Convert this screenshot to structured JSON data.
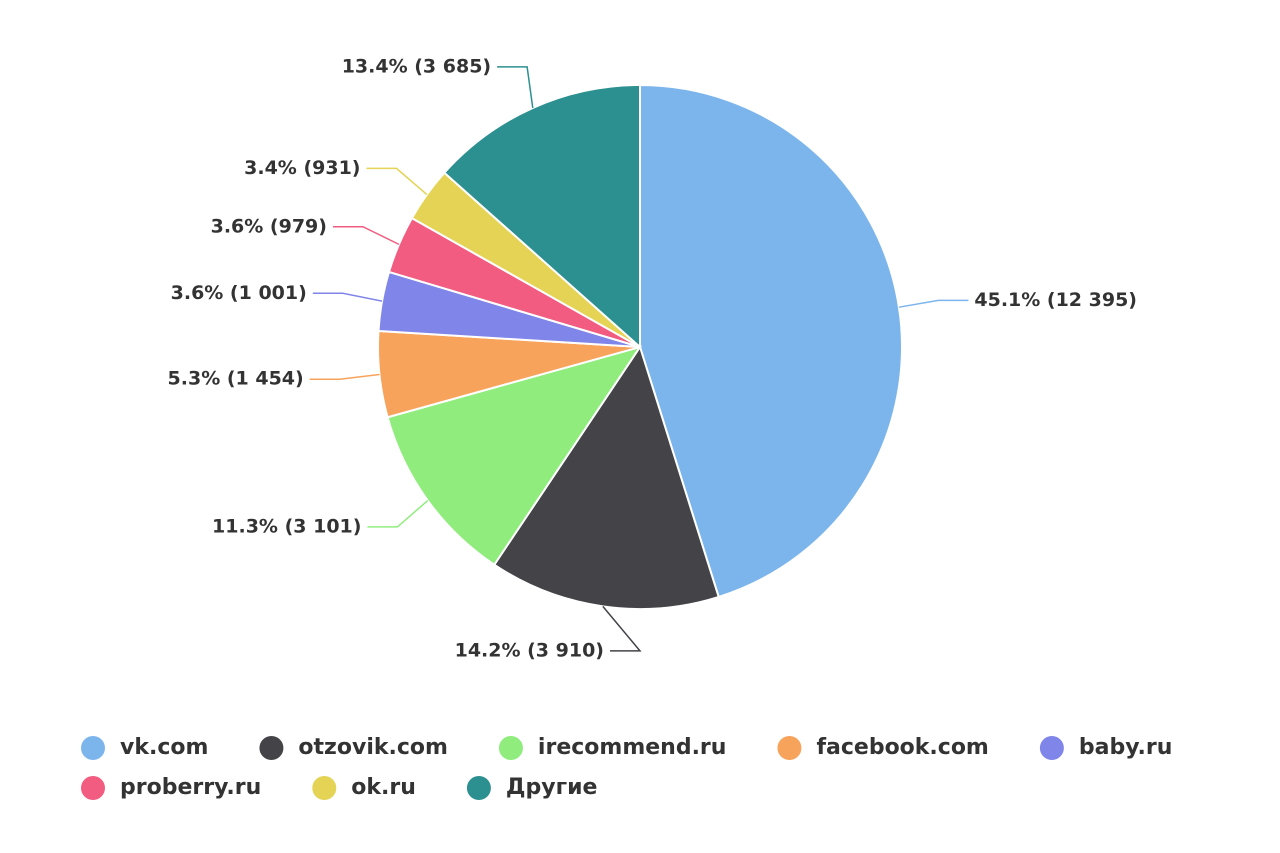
{
  "chart_data": {
    "type": "pie",
    "categories": [
      "vk.com",
      "otzovik.com",
      "irecommend.ru",
      "facebook.com",
      "baby.ru",
      "proberry.ru",
      "ok.ru",
      "Другие"
    ],
    "values": [
      12395,
      3910,
      3101,
      1454,
      1001,
      979,
      931,
      3685
    ],
    "value_labels": [
      "45.1% (12 395)",
      "14.2% (3 910)",
      "11.3% (3 101)",
      "5.3% (1 454)",
      "3.6% (1 001)",
      "3.6% (979)",
      "3.4% (931)",
      "13.4% (3 685)"
    ],
    "colors": [
      "#7cb5ec",
      "#434348",
      "#90ed7d",
      "#f7a35c",
      "#8085e9",
      "#f15c80",
      "#e4d354",
      "#2b908f"
    ],
    "legend": "bottom"
  }
}
